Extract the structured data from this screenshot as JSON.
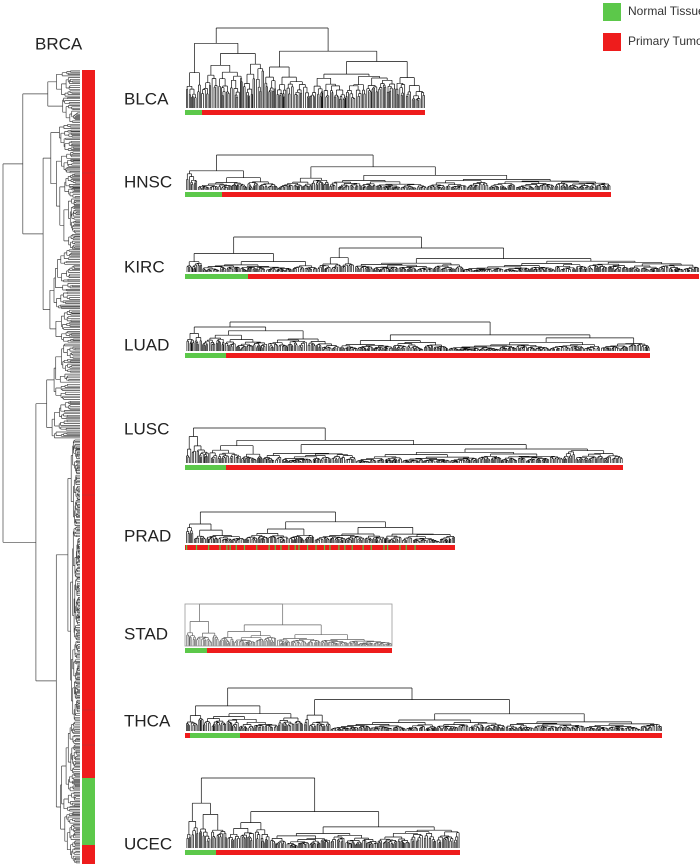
{
  "legend": [
    {
      "label": "Normal Tissue",
      "color": "#5cc84a"
    },
    {
      "label": "Primary Tumor",
      "color": "#ee1c1c"
    }
  ],
  "panels": [
    {
      "label": "BRCA"
    },
    {
      "label": "BLCA"
    },
    {
      "label": "HNSC"
    },
    {
      "label": "KIRC"
    },
    {
      "label": "LUAD"
    },
    {
      "label": "LUSC"
    },
    {
      "label": "PRAD"
    },
    {
      "label": "STAD"
    },
    {
      "label": "THCA"
    },
    {
      "label": "UCEC"
    }
  ]
}
